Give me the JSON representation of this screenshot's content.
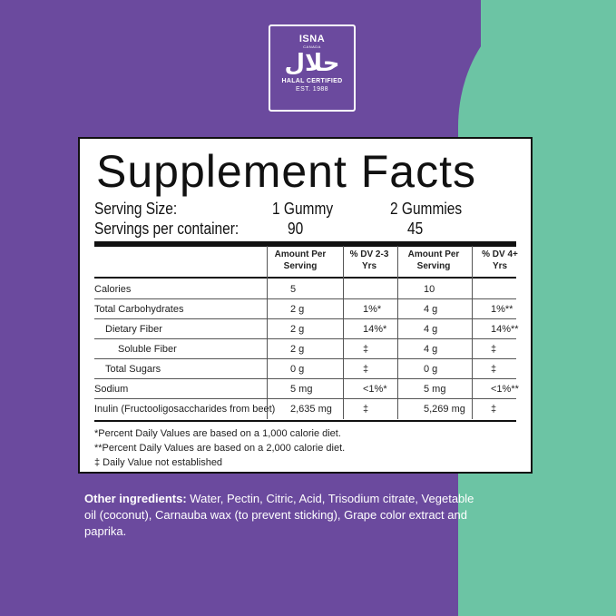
{
  "badge": {
    "brand": "ISNA",
    "country": "CANADA",
    "arabic": "حلال",
    "certified": "HALAL CERTIFIED",
    "established": "EST. 1988"
  },
  "facts": {
    "title": "Supplement Facts",
    "serving_size_label": "Serving Size:",
    "serving_size_1": "1 Gummy",
    "serving_size_2": "2 Gummies",
    "servings_label": "Servings per container:",
    "servings_1": "90",
    "servings_2": "45",
    "headers": {
      "amount_1": "Amount Per Serving",
      "dv_1": "% DV 2-3 Yrs",
      "amount_2": "Amount Per Serving",
      "dv_2": "% DV 4+ Yrs"
    },
    "rows": [
      {
        "name": "Calories",
        "amt1": "5",
        "dv1": "",
        "amt2": "10",
        "dv2": ""
      },
      {
        "name": "Total Carbohydrates",
        "amt1": "2 g",
        "dv1": "1%*",
        "amt2": "4 g",
        "dv2": "1%**"
      },
      {
        "name": "Dietary Fiber",
        "amt1": "2 g",
        "dv1": "14%*",
        "amt2": "4 g",
        "dv2": "14%**"
      },
      {
        "name": "Soluble Fiber",
        "amt1": "2 g",
        "dv1": "‡",
        "amt2": "4 g",
        "dv2": "‡"
      },
      {
        "name": "Total Sugars",
        "amt1": "0 g",
        "dv1": "‡",
        "amt2": "0 g",
        "dv2": "‡"
      },
      {
        "name": "Sodium",
        "amt1": "5 mg",
        "dv1": "<1%*",
        "amt2": "5 mg",
        "dv2": "<1%**"
      },
      {
        "name": "Inulin (Fructooligosaccharides from beet)",
        "amt1": "2,635 mg",
        "dv1": "‡",
        "amt2": "5,269 mg",
        "dv2": "‡"
      }
    ],
    "footnotes": [
      "*Percent Daily Values are based on a 1,000 calorie diet.",
      "**Percent Daily Values are based on a 2,000 calorie diet.",
      "‡ Daily Value not established"
    ]
  },
  "other_ingredients": {
    "label": "Other ingredients:",
    "text": " Water, Pectin, Citric, Acid, Trisodium citrate, Vegetable oil (coconut), Carnauba wax (to prevent sticking), Grape color extract and paprika."
  },
  "colors": {
    "purple": "#6b4a9e",
    "green": "#6cc4a4"
  }
}
